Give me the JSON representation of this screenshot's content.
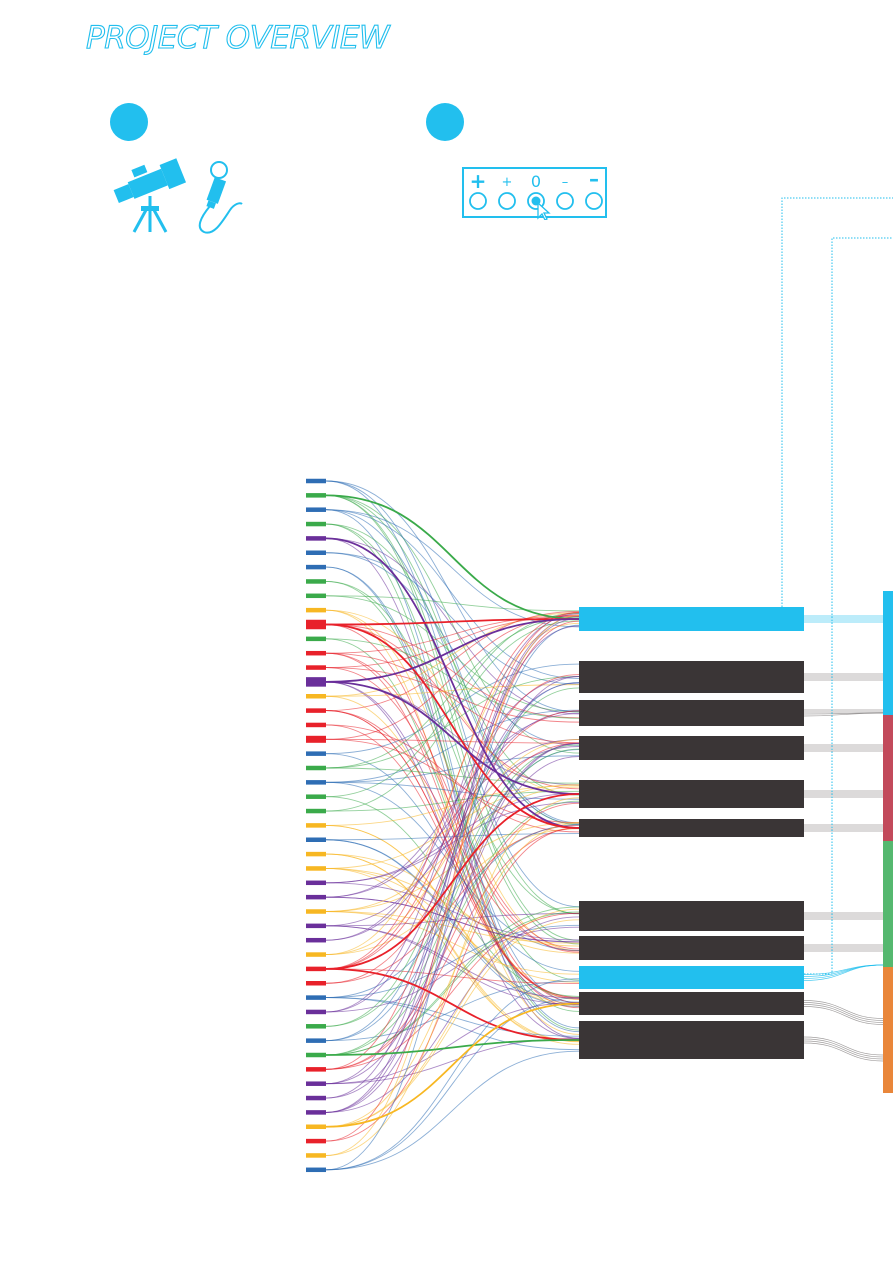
{
  "page": {
    "title": "PROJECT OVERVIEW"
  },
  "colors": {
    "accent": "#22bfee",
    "box_dark": "#3a3536",
    "source_palette": {
      "blue": "#2e6db4",
      "green": "#3aaa4a",
      "purple": "#6a2f9a",
      "yellow": "#f7b722",
      "red": "#e8212a"
    },
    "side_segments": [
      "#22bfee",
      "#c24a5b",
      "#55b86f",
      "#e9863a"
    ]
  },
  "icons": {
    "step1": [
      "telescope-icon",
      "microphone-icon"
    ],
    "step2": "rating-scale-icon"
  },
  "rating_scale": {
    "labels": [
      "+",
      "+",
      "0",
      "–",
      "–"
    ]
  },
  "diagram": {
    "source_colors": [
      "blue",
      "green",
      "blue",
      "green",
      "purple",
      "blue",
      "blue",
      "green",
      "green",
      "yellow",
      "red",
      "green",
      "red",
      "red",
      "purple",
      "yellow",
      "red",
      "red",
      "red",
      "blue",
      "green",
      "blue",
      "green",
      "green",
      "yellow",
      "blue",
      "yellow",
      "yellow",
      "purple",
      "purple",
      "yellow",
      "purple",
      "purple",
      "yellow",
      "red",
      "red",
      "blue",
      "purple",
      "green",
      "blue",
      "green",
      "red",
      "purple",
      "purple",
      "purple",
      "yellow",
      "red",
      "yellow",
      "blue"
    ],
    "source_weights": [
      1,
      1,
      1,
      1,
      1,
      1,
      1,
      1,
      1,
      1,
      3,
      1,
      1,
      1,
      3,
      1,
      1,
      1,
      2,
      1,
      1,
      1,
      1,
      1,
      1,
      1,
      1,
      1,
      1,
      1,
      1,
      1,
      1,
      1,
      1,
      1,
      1,
      1,
      1,
      1,
      1,
      1,
      1,
      1,
      1,
      1,
      1,
      1,
      1
    ],
    "target_types": [
      "highlight",
      "dark",
      "dark",
      "dark",
      "dark",
      "dark",
      "dark",
      "dark",
      "highlight",
      "dark",
      "dark"
    ],
    "strong_links": [
      {
        "from": 1,
        "to": 0,
        "color": "green"
      },
      {
        "from": 4,
        "to": 5,
        "color": "purple"
      },
      {
        "from": 10,
        "to": 0,
        "color": "red"
      },
      {
        "from": 10,
        "to": 5,
        "color": "red"
      },
      {
        "from": 14,
        "to": 0,
        "color": "purple"
      },
      {
        "from": 14,
        "to": 4,
        "color": "purple"
      },
      {
        "from": 34,
        "to": 4,
        "color": "red"
      },
      {
        "from": 34,
        "to": 10,
        "color": "red"
      },
      {
        "from": 40,
        "to": 10,
        "color": "green"
      },
      {
        "from": 45,
        "to": 9,
        "color": "yellow"
      }
    ]
  }
}
